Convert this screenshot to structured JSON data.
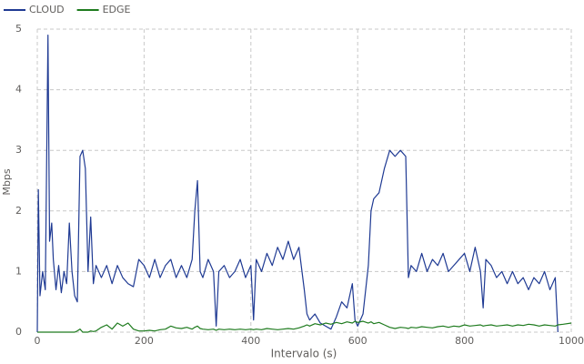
{
  "chart_data": {
    "type": "line",
    "x_label": "Intervalo (s)",
    "y_label": "Mbps",
    "x": [
      0,
      2,
      5,
      10,
      15,
      20,
      23,
      27,
      30,
      35,
      40,
      45,
      50,
      55,
      60,
      65,
      70,
      75,
      80,
      85,
      90,
      95,
      100,
      105,
      110,
      120,
      130,
      140,
      150,
      160,
      170,
      180,
      190,
      200,
      210,
      220,
      230,
      240,
      250,
      260,
      270,
      280,
      290,
      295,
      300,
      305,
      310,
      320,
      330,
      335,
      340,
      350,
      360,
      370,
      380,
      390,
      400,
      405,
      410,
      420,
      430,
      440,
      450,
      460,
      470,
      480,
      490,
      500,
      505,
      510,
      520,
      530,
      540,
      550,
      560,
      570,
      580,
      590,
      595,
      600,
      610,
      620,
      625,
      630,
      640,
      650,
      660,
      670,
      680,
      690,
      695,
      700,
      710,
      720,
      730,
      740,
      750,
      760,
      770,
      780,
      790,
      800,
      810,
      820,
      830,
      835,
      840,
      850,
      860,
      870,
      880,
      890,
      900,
      910,
      920,
      930,
      940,
      950,
      960,
      970,
      975,
      985,
      1000
    ],
    "series": [
      {
        "name": "CLOUD",
        "color": "#1f3a93",
        "values": [
          0,
          2.35,
          0.6,
          1.0,
          0.7,
          4.9,
          1.5,
          1.8,
          1.2,
          0.7,
          1.1,
          0.65,
          1.0,
          0.8,
          1.8,
          1.0,
          0.6,
          0.5,
          2.9,
          3.0,
          2.7,
          1.0,
          1.9,
          0.8,
          1.1,
          0.9,
          1.1,
          0.8,
          1.1,
          0.9,
          0.8,
          0.75,
          1.2,
          1.1,
          0.9,
          1.2,
          0.9,
          1.1,
          1.2,
          0.9,
          1.1,
          0.9,
          1.2,
          2.0,
          2.5,
          1.0,
          0.9,
          1.2,
          1.0,
          0.1,
          1.0,
          1.1,
          0.9,
          1.0,
          1.2,
          0.9,
          1.1,
          0.2,
          1.2,
          1.0,
          1.3,
          1.1,
          1.4,
          1.2,
          1.5,
          1.2,
          1.4,
          0.7,
          0.3,
          0.2,
          0.3,
          0.15,
          0.1,
          0.05,
          0.25,
          0.5,
          0.4,
          0.8,
          0.2,
          0.1,
          0.3,
          1.1,
          2.0,
          2.2,
          2.3,
          2.7,
          3.0,
          2.9,
          3.0,
          2.9,
          0.9,
          1.1,
          1.0,
          1.3,
          1.0,
          1.2,
          1.1,
          1.3,
          1.0,
          1.1,
          1.2,
          1.3,
          1.0,
          1.4,
          1.0,
          0.4,
          1.2,
          1.1,
          0.9,
          1.0,
          0.8,
          1.0,
          0.8,
          0.9,
          0.7,
          0.9,
          0.8,
          1.0,
          0.7,
          0.9,
          0,
          null,
          null
        ]
      },
      {
        "name": "EDGE",
        "color": "#1e7b1e",
        "values": [
          0,
          0,
          0,
          0,
          0,
          0,
          0,
          0,
          0,
          0,
          0,
          0,
          0,
          0,
          0,
          0,
          0,
          0.02,
          0.05,
          0,
          0,
          0,
          0.02,
          0.01,
          0.02,
          0.08,
          0.12,
          0.05,
          0.15,
          0.1,
          0.15,
          0.05,
          0.02,
          0.02,
          0.03,
          0.02,
          0.04,
          0.05,
          0.1,
          0.07,
          0.06,
          0.08,
          0.05,
          0.08,
          0.1,
          0.06,
          0.05,
          0.04,
          0.05,
          0.03,
          0.05,
          0.04,
          0.05,
          0.04,
          0.05,
          0.04,
          0.05,
          0.04,
          0.05,
          0.04,
          0.06,
          0.05,
          0.04,
          0.05,
          0.06,
          0.05,
          0.07,
          0.1,
          0.12,
          0.1,
          0.14,
          0.12,
          0.15,
          0.13,
          0.16,
          0.14,
          0.17,
          0.15,
          0.18,
          0.16,
          0.18,
          0.15,
          0.17,
          0.14,
          0.16,
          0.12,
          0.08,
          0.06,
          0.08,
          0.07,
          0.06,
          0.08,
          0.07,
          0.09,
          0.08,
          0.07,
          0.09,
          0.1,
          0.08,
          0.1,
          0.09,
          0.12,
          0.1,
          0.11,
          0.12,
          0.1,
          0.11,
          0.12,
          0.1,
          0.11,
          0.12,
          0.1,
          0.12,
          0.11,
          0.13,
          0.12,
          0.1,
          0.12,
          0.11,
          0.1,
          0.12,
          0.13,
          0.15
        ]
      }
    ],
    "xlim": [
      0,
      1000
    ],
    "xticks": [
      0,
      200,
      400,
      600,
      800,
      1000
    ],
    "ylim": [
      0,
      5
    ],
    "yticks": [
      0,
      1,
      2,
      3,
      4,
      5
    ],
    "grid": true
  }
}
